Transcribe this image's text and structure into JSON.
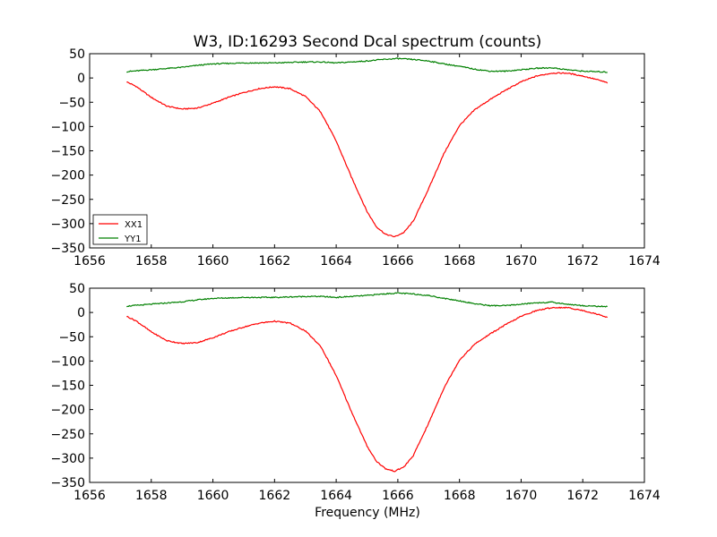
{
  "figure": {
    "title": "W3, ID:16293 Second Dcal spectrum (counts)",
    "xlabel": "Frequency (MHz)"
  },
  "chart_data": [
    {
      "type": "line",
      "title": "W3, ID:16293 Second Dcal spectrum (counts)",
      "xlabel": "",
      "ylabel": "",
      "xlim": [
        1656,
        1674
      ],
      "ylim": [
        -350,
        50
      ],
      "xticks": [
        1656,
        1658,
        1660,
        1662,
        1664,
        1666,
        1668,
        1670,
        1672,
        1674
      ],
      "yticks": [
        50,
        0,
        -50,
        -100,
        -150,
        -200,
        -250,
        -300,
        -350
      ],
      "grid": false,
      "legend": "lower-left",
      "series": [
        {
          "name": "XX1",
          "color": "#ff0000",
          "x": [
            1657.2,
            1657.5,
            1658,
            1658.5,
            1659,
            1659.5,
            1660,
            1660.5,
            1661,
            1661.5,
            1662,
            1662.5,
            1663,
            1663.5,
            1664,
            1664.5,
            1665,
            1665.3,
            1665.6,
            1665.9,
            1666.2,
            1666.5,
            1667,
            1667.5,
            1668,
            1668.5,
            1669,
            1669.5,
            1670,
            1670.5,
            1671,
            1671.5,
            1672,
            1672.5,
            1672.8
          ],
          "y": [
            -8,
            -17,
            -40,
            -58,
            -64,
            -62,
            -52,
            -40,
            -30,
            -22,
            -18,
            -22,
            -38,
            -70,
            -130,
            -205,
            -275,
            -306,
            -322,
            -327,
            -318,
            -295,
            -228,
            -155,
            -98,
            -65,
            -44,
            -25,
            -8,
            4,
            10,
            10,
            4,
            -4,
            -10
          ]
        },
        {
          "name": "YY1",
          "color": "#008000",
          "x": [
            1657.2,
            1658,
            1659,
            1659.5,
            1660,
            1661,
            1662,
            1663,
            1663.5,
            1664,
            1664.5,
            1665,
            1665.5,
            1666,
            1666.5,
            1667,
            1667.5,
            1668,
            1668.5,
            1669,
            1669.5,
            1670,
            1670.5,
            1671,
            1671.5,
            1672,
            1672.8
          ],
          "y": [
            13,
            17,
            22,
            26,
            29,
            31,
            31,
            33,
            33,
            31,
            33,
            35,
            38,
            40,
            38,
            35,
            29,
            24,
            18,
            14,
            14,
            17,
            20,
            21,
            17,
            14,
            12
          ]
        }
      ]
    },
    {
      "type": "line",
      "title": "",
      "xlabel": "Frequency (MHz)",
      "ylabel": "",
      "xlim": [
        1656,
        1674
      ],
      "ylim": [
        -350,
        50
      ],
      "xticks": [
        1656,
        1658,
        1660,
        1662,
        1664,
        1666,
        1668,
        1670,
        1672,
        1674
      ],
      "yticks": [
        50,
        0,
        -50,
        -100,
        -150,
        -200,
        -250,
        -300,
        -350
      ],
      "grid": false,
      "legend": "none",
      "series": [
        {
          "name": "XX1",
          "color": "#ff0000",
          "x": [
            1657.2,
            1657.5,
            1658,
            1658.5,
            1659,
            1659.5,
            1660,
            1660.5,
            1661,
            1661.5,
            1662,
            1662.5,
            1663,
            1663.5,
            1664,
            1664.5,
            1665,
            1665.3,
            1665.6,
            1665.9,
            1666.2,
            1666.5,
            1667,
            1667.5,
            1668,
            1668.5,
            1669,
            1669.5,
            1670,
            1670.5,
            1671,
            1671.5,
            1672,
            1672.5,
            1672.8
          ],
          "y": [
            -8,
            -17,
            -40,
            -58,
            -64,
            -62,
            -52,
            -40,
            -30,
            -22,
            -18,
            -22,
            -38,
            -70,
            -130,
            -205,
            -275,
            -306,
            -322,
            -327,
            -318,
            -295,
            -228,
            -155,
            -98,
            -65,
            -44,
            -25,
            -8,
            4,
            10,
            10,
            4,
            -4,
            -10
          ]
        },
        {
          "name": "YY1",
          "color": "#008000",
          "x": [
            1657.2,
            1658,
            1659,
            1659.5,
            1660,
            1661,
            1662,
            1663,
            1663.5,
            1664,
            1664.5,
            1665,
            1665.5,
            1666,
            1666.5,
            1667,
            1667.5,
            1668,
            1668.5,
            1669,
            1669.5,
            1670,
            1670.5,
            1671,
            1671.5,
            1672,
            1672.8
          ],
          "y": [
            13,
            17,
            22,
            26,
            29,
            31,
            31,
            33,
            33,
            31,
            33,
            35,
            38,
            40,
            38,
            35,
            29,
            24,
            18,
            14,
            14,
            17,
            20,
            21,
            17,
            14,
            12
          ]
        }
      ]
    }
  ]
}
